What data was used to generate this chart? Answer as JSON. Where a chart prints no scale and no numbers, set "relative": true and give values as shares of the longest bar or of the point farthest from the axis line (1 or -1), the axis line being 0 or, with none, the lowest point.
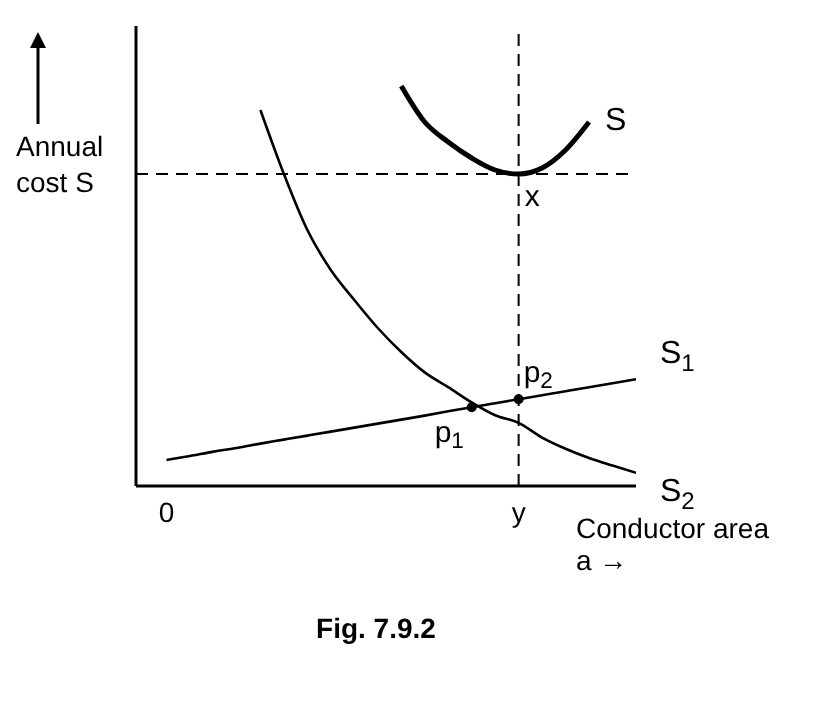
{
  "chart_data": {
    "type": "line",
    "title": "Fig. 7.9.2",
    "xlabel": "Conductor area  a →",
    "ylabel": "Annual cost S",
    "relative": true,
    "marker": "none",
    "line_style": "solid",
    "categories": [
      "0",
      null,
      null,
      null,
      null,
      null,
      null,
      null,
      null,
      null,
      null,
      null,
      null,
      null,
      null,
      "y",
      null,
      null,
      null,
      null,
      null
    ],
    "series": [
      {
        "name": "S",
        "color": "#000000",
        "values": [
          null,
          null,
          null,
          null,
          null,
          null,
          null,
          null,
          null,
          null,
          1,
          0.91,
          0.86,
          0.82,
          0.79,
          0.78,
          0.795,
          0.84,
          0.91,
          null,
          null
        ]
      },
      {
        "name": "S$_{1}$",
        "color": "#000000",
        "values": [
          0.065,
          0.075,
          0.086,
          0.095,
          0.106,
          0.116,
          0.126,
          0.136,
          0.146,
          0.156,
          0.166,
          0.176,
          0.187,
          0.197,
          0.207,
          0.217,
          0.227,
          0.237,
          0.247,
          0.257,
          0.267
        ]
      },
      {
        "name": "S$_{2}$",
        "color": "#000000",
        "values": [
          null,
          null,
          null,
          null,
          0.94,
          0.78,
          0.64,
          0.54,
          0.465,
          0.395,
          0.335,
          0.284,
          0.247,
          0.209,
          0.177,
          0.158,
          0.121,
          0.093,
          0.07,
          0.051,
          0.033
        ]
      }
    ],
    "ref_lines": [
      {
        "axis": "x",
        "value": "y",
        "label": null,
        "line_style": "dashed",
        "color": "#000000"
      },
      {
        "axis": "y",
        "value": 0.78,
        "label": null,
        "line_style": "dashed",
        "color": "#000000"
      }
    ],
    "annotations": [
      {
        "text": "x",
        "x": "y",
        "y": 0.78
      },
      {
        "text": "p$_{2}$",
        "x": "y",
        "y": 0.217
      },
      {
        "text": "p$_{1}$",
        "y": 0.197
      }
    ]
  }
}
